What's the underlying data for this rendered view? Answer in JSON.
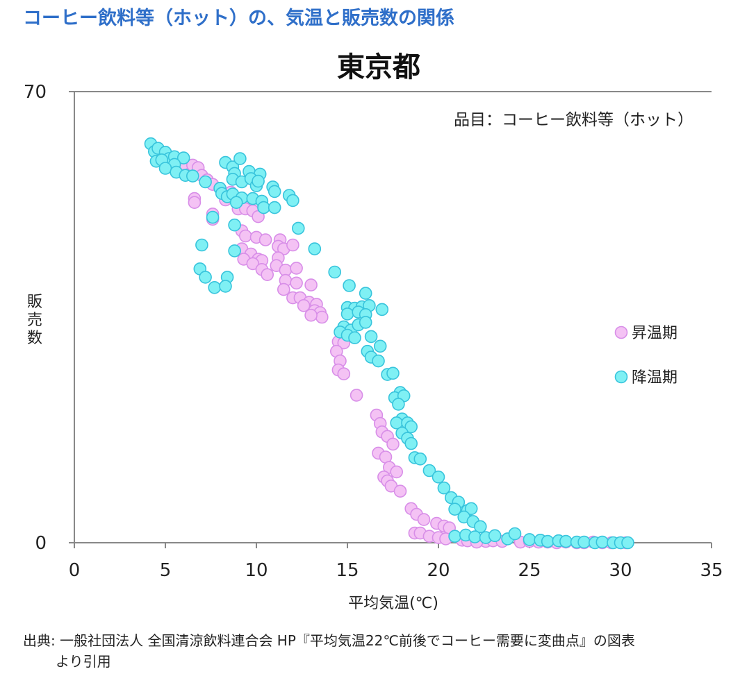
{
  "page_title": "コーヒー飲料等（ホット）の、気温と販売数の関係",
  "source_note": {
    "line1": "出典: 一般社団法人 全国清涼飲料連合会 HP『平均気温22℃前後でコーヒー需要に変曲点』の図表",
    "line2": "より引用"
  },
  "colors": {
    "title": "#2f6fc9",
    "rising": "#f4c2f4",
    "rising_stroke": "#d88ee8",
    "falling": "#7ff0f4",
    "falling_stroke": "#38c4dc",
    "axis": "#888888"
  },
  "chart_data": {
    "type": "scatter",
    "title": "東京都",
    "annotation": "品目：コーヒー飲料等（ホット）",
    "xlabel": "平均気温(℃)",
    "ylabel": "販売数",
    "xlim": [
      0,
      35
    ],
    "ylim": [
      0,
      70
    ],
    "x_ticks": [
      0,
      5,
      10,
      15,
      20,
      25,
      30,
      35
    ],
    "y_ticks": [
      0,
      70
    ],
    "grid": false,
    "legend_position": "right",
    "series": [
      {
        "name": "昇温期",
        "points": [
          [
            6.0,
            58.8
          ],
          [
            6.5,
            58.6
          ],
          [
            6.8,
            58.2
          ],
          [
            7.0,
            57.0
          ],
          [
            7.3,
            56.3
          ],
          [
            7.6,
            55.6
          ],
          [
            8.0,
            55.0
          ],
          [
            6.6,
            53.4
          ],
          [
            6.6,
            52.8
          ],
          [
            7.6,
            51.0
          ],
          [
            7.6,
            50.2
          ],
          [
            8.3,
            53.2
          ],
          [
            8.6,
            54.4
          ],
          [
            8.9,
            53.3
          ],
          [
            9.3,
            53.2
          ],
          [
            9.6,
            52.6
          ],
          [
            9.0,
            51.8
          ],
          [
            9.4,
            51.8
          ],
          [
            9.8,
            51.5
          ],
          [
            10.1,
            50.6
          ],
          [
            9.2,
            48.4
          ],
          [
            9.4,
            47.6
          ],
          [
            10.0,
            47.4
          ],
          [
            10.5,
            47.0
          ],
          [
            11.3,
            47.0
          ],
          [
            11.2,
            46.0
          ],
          [
            11.5,
            45.6
          ],
          [
            12.0,
            46.2
          ],
          [
            9.2,
            45.6
          ],
          [
            9.7,
            44.8
          ],
          [
            9.3,
            44.0
          ],
          [
            10.1,
            44.0
          ],
          [
            10.3,
            43.8
          ],
          [
            11.2,
            44.2
          ],
          [
            9.8,
            43.3
          ],
          [
            10.3,
            42.4
          ],
          [
            10.6,
            41.6
          ],
          [
            11.1,
            43.0
          ],
          [
            11.6,
            42.3
          ],
          [
            12.2,
            42.6
          ],
          [
            11.6,
            40.7
          ],
          [
            12.2,
            40.3
          ],
          [
            13.0,
            40.0
          ],
          [
            11.5,
            39.3
          ],
          [
            12.0,
            38.0
          ],
          [
            12.4,
            38.0
          ],
          [
            12.9,
            37.3
          ],
          [
            13.3,
            37.0
          ],
          [
            12.6,
            36.8
          ],
          [
            13.2,
            36.0
          ],
          [
            13.5,
            35.7
          ],
          [
            13.6,
            35.0
          ],
          [
            13.0,
            35.3
          ],
          [
            14.5,
            31.2
          ],
          [
            14.8,
            31.0
          ],
          [
            14.4,
            29.7
          ],
          [
            14.6,
            28.2
          ],
          [
            14.5,
            26.8
          ],
          [
            14.8,
            26.2
          ],
          [
            15.5,
            22.9
          ],
          [
            16.6,
            19.8
          ],
          [
            16.8,
            18.5
          ],
          [
            16.9,
            17.2
          ],
          [
            17.2,
            16.5
          ],
          [
            17.5,
            15.3
          ],
          [
            16.7,
            13.9
          ],
          [
            17.1,
            13.3
          ],
          [
            17.3,
            11.7
          ],
          [
            17.7,
            11.0
          ],
          [
            17.0,
            10.2
          ],
          [
            17.2,
            9.6
          ],
          [
            17.4,
            8.8
          ],
          [
            17.9,
            8.0
          ],
          [
            18.5,
            5.3
          ],
          [
            18.8,
            4.4
          ],
          [
            19.2,
            3.6
          ],
          [
            19.9,
            3.0
          ],
          [
            20.3,
            2.6
          ],
          [
            20.6,
            2.3
          ],
          [
            18.7,
            1.5
          ],
          [
            19.0,
            1.5
          ],
          [
            19.5,
            1.0
          ],
          [
            20.0,
            0.8
          ],
          [
            20.4,
            0.6
          ],
          [
            21.3,
            0.4
          ],
          [
            21.6,
            0.3
          ],
          [
            22.6,
            0.2
          ],
          [
            22.1,
            0.1
          ],
          [
            23.0,
            0.3
          ],
          [
            23.5,
            0.2
          ],
          [
            24.5,
            0.1
          ],
          [
            25.0,
            0.2
          ],
          [
            25.5,
            0.1
          ],
          [
            26.0,
            0.1
          ],
          [
            26.5,
            0.0
          ],
          [
            27.0,
            0.1
          ],
          [
            27.6,
            0.0
          ],
          [
            28.0,
            0.0
          ],
          [
            28.5,
            0.1
          ],
          [
            29.0,
            0.0
          ],
          [
            29.5,
            0.0
          ],
          [
            30.0,
            0.0
          ],
          [
            30.3,
            0.0
          ]
        ]
      },
      {
        "name": "降温期",
        "points": [
          [
            4.2,
            61.9
          ],
          [
            4.4,
            60.7
          ],
          [
            4.6,
            61.2
          ],
          [
            5.0,
            60.6
          ],
          [
            5.2,
            59.6
          ],
          [
            5.5,
            59.9
          ],
          [
            6.0,
            59.7
          ],
          [
            4.5,
            59.2
          ],
          [
            4.8,
            59.4
          ],
          [
            5.5,
            58.7
          ],
          [
            5.0,
            58.1
          ],
          [
            5.6,
            57.5
          ],
          [
            6.1,
            57.0
          ],
          [
            6.5,
            56.9
          ],
          [
            7.2,
            56.0
          ],
          [
            8.3,
            59.0
          ],
          [
            8.7,
            58.3
          ],
          [
            9.1,
            59.6
          ],
          [
            8.8,
            57.3
          ],
          [
            9.6,
            57.6
          ],
          [
            10.2,
            57.2
          ],
          [
            8.7,
            56.4
          ],
          [
            9.2,
            56.0
          ],
          [
            9.7,
            56.5
          ],
          [
            10.0,
            55.4
          ],
          [
            10.1,
            56.1
          ],
          [
            10.9,
            55.2
          ],
          [
            11.0,
            54.5
          ],
          [
            8.0,
            55.0
          ],
          [
            8.1,
            54.2
          ],
          [
            8.4,
            53.7
          ],
          [
            8.7,
            54.1
          ],
          [
            9.2,
            53.5
          ],
          [
            9.8,
            53.4
          ],
          [
            10.3,
            53.0
          ],
          [
            10.4,
            52.0
          ],
          [
            11.0,
            52.0
          ],
          [
            11.8,
            53.9
          ],
          [
            12.0,
            53.1
          ],
          [
            8.9,
            52.8
          ],
          [
            7.6,
            50.5
          ],
          [
            8.8,
            49.3
          ],
          [
            12.3,
            48.8
          ],
          [
            13.2,
            45.6
          ],
          [
            7.0,
            46.2
          ],
          [
            8.8,
            45.3
          ],
          [
            14.3,
            42.0
          ],
          [
            15.1,
            39.9
          ],
          [
            16.0,
            38.7
          ],
          [
            6.9,
            42.5
          ],
          [
            7.2,
            41.2
          ],
          [
            8.4,
            41.2
          ],
          [
            7.7,
            39.6
          ],
          [
            8.3,
            39.8
          ],
          [
            15.0,
            36.5
          ],
          [
            15.4,
            36.4
          ],
          [
            15.8,
            36.6
          ],
          [
            16.2,
            36.8
          ],
          [
            16.9,
            36.2
          ],
          [
            15.0,
            35.5
          ],
          [
            15.6,
            35.8
          ],
          [
            16.0,
            35.4
          ],
          [
            14.8,
            33.5
          ],
          [
            15.2,
            33.0
          ],
          [
            15.6,
            33.8
          ],
          [
            16.0,
            34.2
          ],
          [
            14.6,
            32.7
          ],
          [
            15.0,
            32.2
          ],
          [
            15.4,
            31.8
          ],
          [
            16.3,
            32.0
          ],
          [
            16.8,
            30.5
          ],
          [
            16.1,
            29.7
          ],
          [
            16.3,
            28.8
          ],
          [
            16.7,
            28.2
          ],
          [
            17.2,
            26.1
          ],
          [
            17.5,
            26.3
          ],
          [
            17.9,
            23.3
          ],
          [
            17.6,
            22.5
          ],
          [
            18.1,
            22.8
          ],
          [
            17.8,
            21.5
          ],
          [
            18.0,
            19.2
          ],
          [
            17.7,
            18.6
          ],
          [
            18.3,
            18.6
          ],
          [
            18.5,
            18.0
          ],
          [
            18.0,
            17.0
          ],
          [
            18.3,
            16.2
          ],
          [
            18.5,
            15.4
          ],
          [
            18.7,
            13.2
          ],
          [
            19.0,
            13.0
          ],
          [
            19.5,
            11.2
          ],
          [
            20.0,
            10.2
          ],
          [
            20.3,
            8.5
          ],
          [
            20.7,
            7.0
          ],
          [
            21.1,
            6.3
          ],
          [
            20.9,
            5.2
          ],
          [
            21.6,
            5.0
          ],
          [
            21.8,
            5.3
          ],
          [
            21.4,
            4.0
          ],
          [
            21.9,
            3.3
          ],
          [
            22.3,
            2.5
          ],
          [
            20.9,
            1.0
          ],
          [
            21.5,
            1.2
          ],
          [
            22.0,
            0.9
          ],
          [
            22.6,
            0.8
          ],
          [
            23.1,
            1.1
          ],
          [
            23.8,
            0.6
          ],
          [
            24.2,
            1.4
          ],
          [
            25.0,
            0.5
          ],
          [
            25.6,
            0.4
          ],
          [
            26.0,
            0.2
          ],
          [
            26.6,
            0.3
          ],
          [
            27.0,
            0.2
          ],
          [
            27.6,
            0.1
          ],
          [
            28.0,
            0.1
          ],
          [
            28.6,
            0.0
          ],
          [
            29.0,
            0.1
          ],
          [
            29.6,
            0.0
          ],
          [
            30.0,
            0.0
          ],
          [
            30.4,
            0.0
          ]
        ]
      }
    ]
  }
}
